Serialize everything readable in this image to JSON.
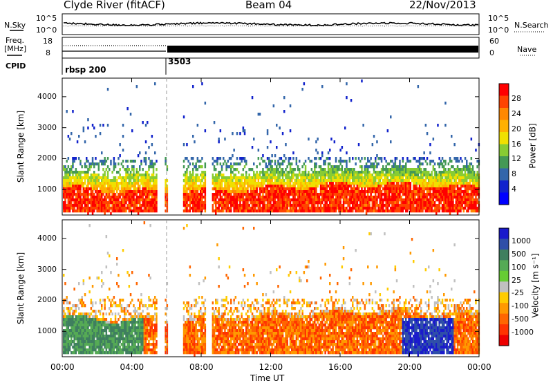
{
  "header": {
    "station": "Clyde River (fitACF)",
    "beam": "Beam 04",
    "date": "22/Nov/2013"
  },
  "top_panels": {
    "nsky_label": "N.Sky",
    "nsky_ticks": [
      "10^5",
      "10^0"
    ],
    "nsearch_label": "N.Search",
    "nsearch_ticks": [
      "10^5",
      "10^0"
    ],
    "freq_label": "Freq.",
    "freq_unit": "[MHz]",
    "freq_ticks": [
      "18",
      "8"
    ],
    "nave_label": "Nave",
    "nave_ticks": [
      "60",
      "0"
    ],
    "cpid_label": "CPID",
    "cpid_segments": [
      {
        "label": "rbsp 200",
        "start_hour": 0
      },
      {
        "label": "3503",
        "start_hour": 6
      }
    ]
  },
  "chart_data": [
    {
      "type": "heatmap",
      "name": "power",
      "xlabel": "",
      "ylabel": "Slant Range [km]",
      "x_ticks": [
        "00:00",
        "04:00",
        "08:00",
        "12:00",
        "16:00",
        "20:00",
        "00:00"
      ],
      "xlim_hours": [
        0,
        24
      ],
      "y_ticks": [
        1000,
        2000,
        3000,
        4000
      ],
      "ylim": [
        180,
        4600
      ],
      "colorbar": {
        "label": "Power [dB]",
        "ticks": [
          "28",
          "24",
          "20",
          "16",
          "12",
          "8",
          "4"
        ],
        "colors": [
          "#ff0000",
          "#ff4400",
          "#ff8800",
          "#ffb000",
          "#f0e000",
          "#88cc33",
          "#449955",
          "#3366aa",
          "#1122cc",
          "#0000ff"
        ]
      }
    },
    {
      "type": "heatmap",
      "name": "velocity",
      "xlabel": "Time UT",
      "ylabel": "Slant Range [km]",
      "x_ticks": [
        "00:00",
        "04:00",
        "08:00",
        "12:00",
        "16:00",
        "20:00",
        "00:00"
      ],
      "xlim_hours": [
        0,
        24
      ],
      "y_ticks": [
        1000,
        2000,
        3000,
        4000
      ],
      "ylim": [
        180,
        4600
      ],
      "colorbar": {
        "label": "Velocity [m s⁻¹]",
        "ticks": [
          "1000",
          "500",
          "100",
          "25",
          "-25",
          "-100",
          "-500",
          "-1000"
        ],
        "colors": [
          "#1a1acc",
          "#2f4fa8",
          "#3f7f5f",
          "#55aa55",
          "#66cc33",
          "#c0c0c0",
          "#ffcc00",
          "#ff9900",
          "#ff6600",
          "#ff3300",
          "#ee0000"
        ]
      }
    }
  ],
  "colors": {
    "power_dominant": "#ff2200",
    "velocity_dominant_positive": "#4a8a5a",
    "velocity_dominant_negative": "#ff7711"
  }
}
